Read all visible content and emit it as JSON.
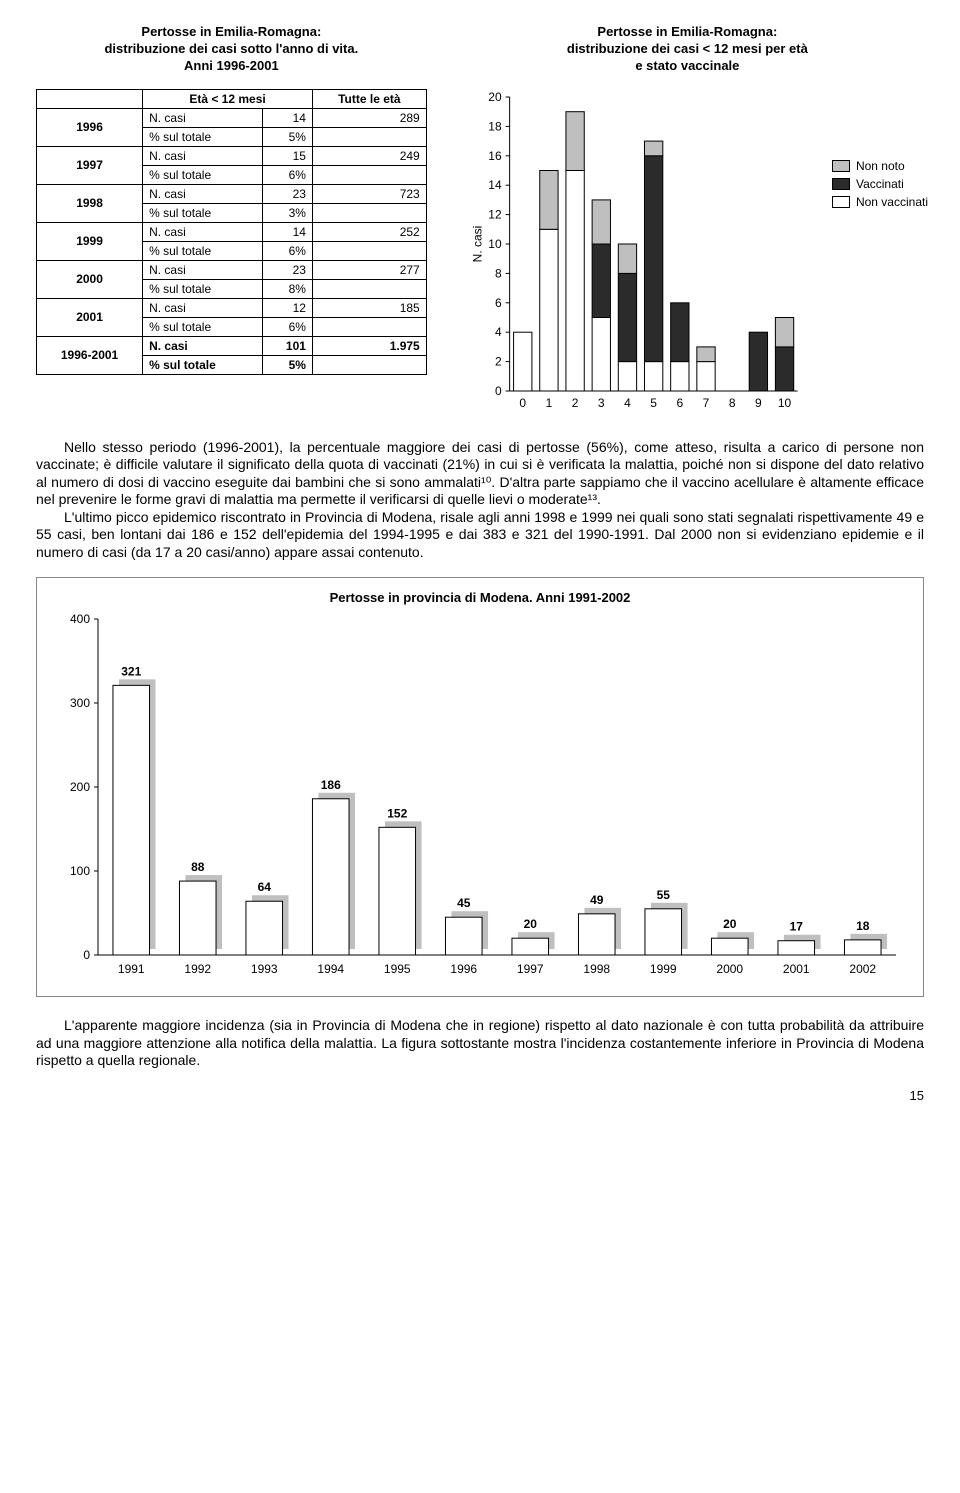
{
  "title_left": "Pertosse in Emilia-Romagna:\ndistribuzione dei casi sotto l'anno di vita.\nAnni 1996-2001",
  "title_right": "Pertosse in Emilia-Romagna:\ndistribuzione dei casi < 12 mesi per età\ne stato vaccinale",
  "table": {
    "headers": [
      "",
      "Età < 12 mesi",
      "Tutte le età"
    ],
    "rows": [
      {
        "year": "1996",
        "ncasi_lbl": "N. casi",
        "ncasi_u12": "14",
        "ncasi_all": "289",
        "pct_lbl": "% sul totale",
        "pct": "5%"
      },
      {
        "year": "1997",
        "ncasi_lbl": "N. casi",
        "ncasi_u12": "15",
        "ncasi_all": "249",
        "pct_lbl": "% sul totale",
        "pct": "6%"
      },
      {
        "year": "1998",
        "ncasi_lbl": "N. casi",
        "ncasi_u12": "23",
        "ncasi_all": "723",
        "pct_lbl": "% sul totale",
        "pct": "3%"
      },
      {
        "year": "1999",
        "ncasi_lbl": "N. casi",
        "ncasi_u12": "14",
        "ncasi_all": "252",
        "pct_lbl": "% sul totale",
        "pct": "6%"
      },
      {
        "year": "2000",
        "ncasi_lbl": "N. casi",
        "ncasi_u12": "23",
        "ncasi_all": "277",
        "pct_lbl": "% sul totale",
        "pct": "8%"
      },
      {
        "year": "2001",
        "ncasi_lbl": "N. casi",
        "ncasi_u12": "12",
        "ncasi_all": "185",
        "pct_lbl": "% sul totale",
        "pct": "6%"
      }
    ],
    "total": {
      "year": "1996-2001",
      "ncasi_lbl": "N. casi",
      "ncasi_u12": "101",
      "ncasi_all": "1.975",
      "pct_lbl": "% sul totale",
      "pct": "5%"
    }
  },
  "chart1": {
    "type": "stacked-bar",
    "ylabel": "N. casi",
    "ylim": [
      0,
      20
    ],
    "ytick_step": 2,
    "x_labels": [
      "0",
      "1",
      "2",
      "3",
      "4",
      "5",
      "6",
      "7",
      "8",
      "9",
      "10"
    ],
    "legend": [
      {
        "label": "Non noto",
        "color": "#bfbfbf"
      },
      {
        "label": "Vaccinati",
        "color": "#2b2b2b"
      },
      {
        "label": "Non vaccinati",
        "color": "#ffffff"
      }
    ],
    "bars": [
      {
        "non_vaccinati": 4,
        "vaccinati": 0,
        "non_noto": 0
      },
      {
        "non_vaccinati": 11,
        "vaccinati": 0,
        "non_noto": 4
      },
      {
        "non_vaccinati": 15,
        "vaccinati": 0,
        "non_noto": 4
      },
      {
        "non_vaccinati": 5,
        "vaccinati": 5,
        "non_noto": 3
      },
      {
        "non_vaccinati": 2,
        "vaccinati": 6,
        "non_noto": 2
      },
      {
        "non_vaccinati": 2,
        "vaccinati": 14,
        "non_noto": 1
      },
      {
        "non_vaccinati": 2,
        "vaccinati": 4,
        "non_noto": 0
      },
      {
        "non_vaccinati": 2,
        "vaccinati": 0,
        "non_noto": 1
      },
      {
        "non_vaccinati": 0,
        "vaccinati": 0,
        "non_noto": 0
      },
      {
        "non_vaccinati": 0,
        "vaccinati": 4,
        "non_noto": 0
      },
      {
        "non_vaccinati": 0,
        "vaccinati": 3,
        "non_noto": 2
      }
    ],
    "bar_border": "#000000",
    "background": "#ffffff"
  },
  "paragraph1": "Nello stesso periodo (1996-2001), la percentuale maggiore dei casi di pertosse (56%), come atteso, risulta a carico di persone non vaccinate; è difficile valutare il significato della quota di vaccinati (21%) in cui si è verificata la malattia, poiché non si dispone del dato relativo al numero di dosi di vaccino eseguite dai bambini che si sono ammalati¹⁰. D'altra parte sappiamo che il vaccino acellulare è altamente efficace nel prevenire le forme gravi di malattia ma permette il verificarsi di quelle lievi o moderate¹³.",
  "paragraph2": "L'ultimo picco epidemico riscontrato in Provincia di Modena, risale agli anni 1998 e 1999 nei quali sono stati segnalati rispettivamente 49 e 55 casi, ben lontani dai 186 e 152 dell'epidemia del 1994-1995 e dai 383 e 321 del 1990-1991. Dal 2000 non si evidenziano epidemie e il numero di casi (da 17 a 20 casi/anno) appare assai contenuto.",
  "chart2": {
    "title": "Pertosse in provincia di Modena.       Anni 1991-2002",
    "type": "bar",
    "ylim": [
      0,
      400
    ],
    "ytick_step": 100,
    "categories": [
      "1991",
      "1992",
      "1993",
      "1994",
      "1995",
      "1996",
      "1997",
      "1998",
      "1999",
      "2000",
      "2001",
      "2002"
    ],
    "values": [
      321,
      88,
      64,
      186,
      152,
      45,
      20,
      49,
      55,
      20,
      17,
      18
    ],
    "bar_fill": "#ffffff",
    "bar_border": "#000000",
    "shadow_color": "#bfbfbf",
    "label_fontsize": 12
  },
  "paragraph3": "L'apparente maggiore incidenza (sia in Provincia di Modena che in regione) rispetto al dato nazionale è con tutta probabilità da attribuire ad una maggiore attenzione alla notifica della malattia.  La figura sottostante mostra l'incidenza costantemente inferiore in Provincia di Modena rispetto a quella regionale.",
  "page_number": "15"
}
